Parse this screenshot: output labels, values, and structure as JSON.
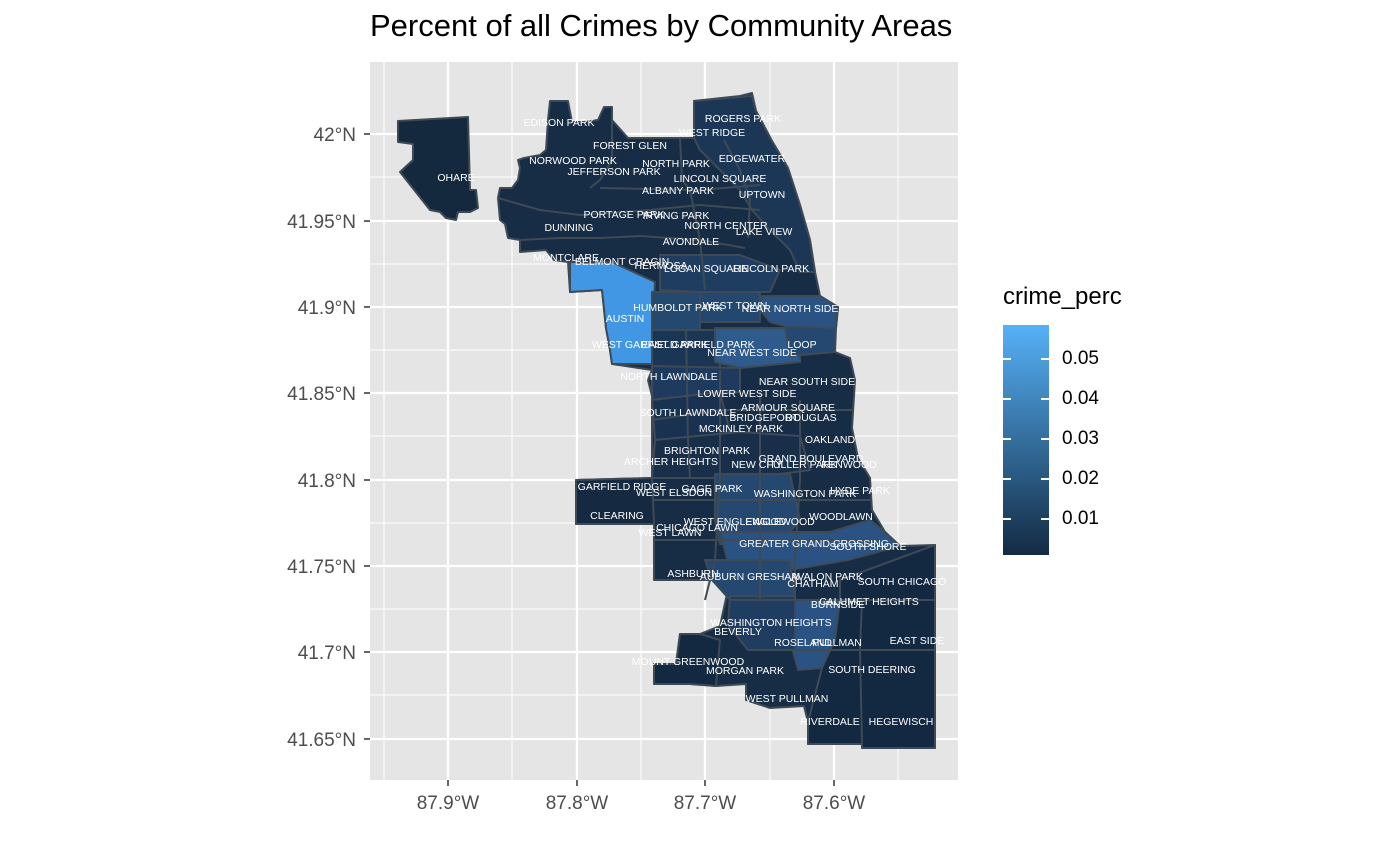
{
  "title": "Percent of all Crimes by Community Areas",
  "axes": {
    "y_ticks": [
      "42°N",
      "41.95°N",
      "41.9°N",
      "41.85°N",
      "41.8°N",
      "41.75°N",
      "41.7°N",
      "41.65°N"
    ],
    "x_ticks": [
      "87.9°W",
      "87.8°W",
      "87.7°W",
      "87.6°W"
    ]
  },
  "legend": {
    "title": "crime_perc",
    "ticks": [
      "0.05",
      "0.04",
      "0.03",
      "0.02",
      "0.01"
    ],
    "color_low": "#132B43",
    "color_high": "#56B1F7"
  },
  "panel_background": "#E5E5E5",
  "grid_color": "#FFFFFF",
  "border_color": "#3E4A55",
  "area_labels": [
    "OHARE",
    "EDISON PARK",
    "ROGERS PARK",
    "WEST RIDGE",
    "FOREST GLEN",
    "NORWOOD PARK",
    "NORTH PARK",
    "EDGEWATER",
    "JEFFERSON PARK",
    "LINCOLN SQUARE",
    "ALBANY PARK",
    "UPTOWN",
    "PORTAGE PARK",
    "IRVING PARK",
    "NORTH CENTER",
    "DUNNING",
    "LAKE VIEW",
    "AVONDALE",
    "MONTCLARE",
    "BELMONT CRAGIN",
    "HERMOSA",
    "LOGAN SQUARE",
    "LINCOLN PARK",
    "HUMBOLDT PARK",
    "WEST TOWN",
    "NEAR NORTH SIDE",
    "AUSTIN",
    "WEST GARFIELD PARK",
    "EAST GARFIELD PARK",
    "LOOP",
    "NEAR WEST SIDE",
    "NORTH LAWNDALE",
    "NEAR SOUTH SIDE",
    "LOWER WEST SIDE",
    "ARMOUR SQUARE",
    "SOUTH LAWNDALE",
    "BRIDGEPORT",
    "DOUGLAS",
    "MCKINLEY PARK",
    "OAKLAND",
    "BRIGHTON PARK",
    "GRAND BOULEVARD",
    "ARCHER HEIGHTS",
    "NEW CITY",
    "FULLER PARK",
    "KENWOOD",
    "GARFIELD RIDGE",
    "GAGE PARK",
    "WEST ELSDON",
    "WASHINGTON PARK",
    "HYDE PARK",
    "CLEARING",
    "WEST ENGLEWOOD",
    "ENGLEWOOD",
    "WOODLAWN",
    "CHICAGO LAWN",
    "WEST LAWN",
    "GREATER GRAND CROSSING",
    "SOUTH SHORE",
    "ASHBURN",
    "AUBURN GRESHAM",
    "AVALON PARK",
    "SOUTH CHICAGO",
    "CHATHAM",
    "CALUMET HEIGHTS",
    "BURNSIDE",
    "WASHINGTON HEIGHTS",
    "BEVERLY",
    "ROSELAND",
    "PULLMAN",
    "EAST SIDE",
    "MOUNT GREENWOOD",
    "MORGAN PARK",
    "SOUTH DEERING",
    "WEST PULLMAN",
    "RIVERDALE",
    "HEGEWISCH"
  ]
}
